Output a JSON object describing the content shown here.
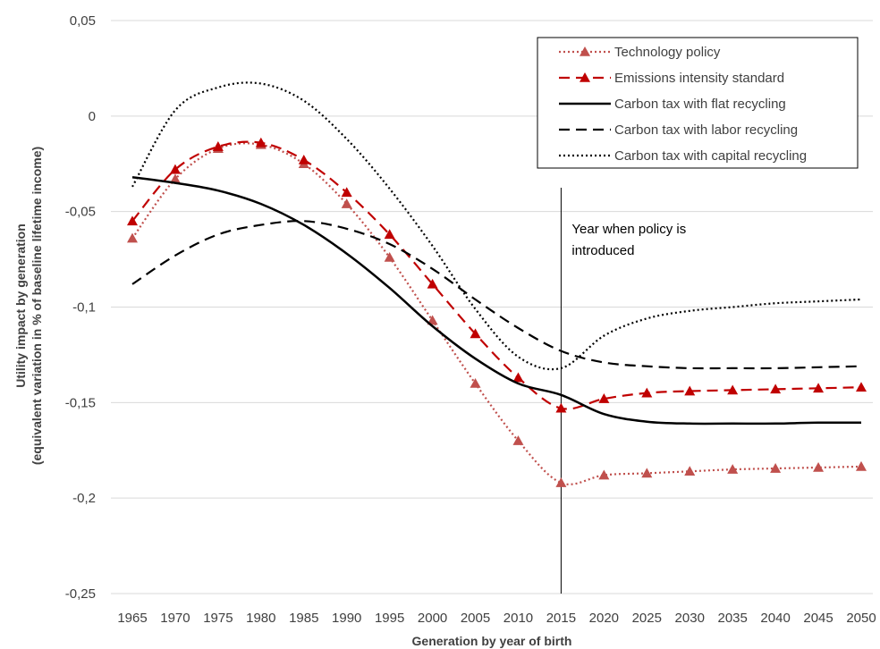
{
  "chart_data": {
    "type": "line",
    "title": "",
    "xlabel": "Generation by year of birth",
    "ylabel_line1": "Utility impact by generation",
    "ylabel_line2": "(equivalent variation in % of baseline lifetime income)",
    "x": [
      1965,
      1970,
      1975,
      1980,
      1985,
      1990,
      1995,
      2000,
      2005,
      2010,
      2015,
      2020,
      2025,
      2030,
      2035,
      2040,
      2045,
      2050
    ],
    "x_tick_labels": [
      "1965",
      "1970",
      "1975",
      "1980",
      "1985",
      "1990",
      "1995",
      "2000",
      "2005",
      "2010",
      "2015",
      "2020",
      "2025",
      "2030",
      "2035",
      "2040",
      "2045",
      "2050"
    ],
    "ylim": [
      -0.25,
      0.05
    ],
    "y_ticks": [
      0.05,
      0,
      -0.05,
      -0.1,
      -0.15,
      -0.2,
      -0.25
    ],
    "y_tick_labels": [
      "0,05",
      "0",
      "-0,05",
      "-0,1",
      "-0,15",
      "-0,2",
      "-0,25"
    ],
    "grid": "horizontal",
    "legend_position": "top-right",
    "annotation": {
      "x": 2015,
      "text_line1": "Year when policy is",
      "text_line2": "introduced"
    },
    "series": [
      {
        "name": "Technology policy",
        "color": "#c0504d",
        "line": "dotted",
        "marker": "triangle",
        "values": [
          -0.064,
          -0.033,
          -0.017,
          -0.015,
          -0.025,
          -0.046,
          -0.074,
          -0.107,
          -0.14,
          -0.17,
          -0.192,
          -0.188,
          -0.187,
          -0.186,
          -0.185,
          -0.1845,
          -0.184,
          -0.1835
        ]
      },
      {
        "name": "Emissions intensity standard",
        "color": "#c00000",
        "line": "dashed",
        "marker": "triangle",
        "values": [
          -0.055,
          -0.028,
          -0.016,
          -0.014,
          -0.023,
          -0.04,
          -0.062,
          -0.088,
          -0.114,
          -0.137,
          -0.153,
          -0.148,
          -0.145,
          -0.144,
          -0.1435,
          -0.143,
          -0.1425,
          -0.142
        ]
      },
      {
        "name": "Carbon tax with flat recycling",
        "color": "#000000",
        "line": "solid",
        "marker": "none",
        "values": [
          -0.032,
          -0.035,
          -0.039,
          -0.046,
          -0.057,
          -0.072,
          -0.09,
          -0.11,
          -0.127,
          -0.14,
          -0.146,
          -0.156,
          -0.16,
          -0.161,
          -0.161,
          -0.161,
          -0.1605,
          -0.1605
        ]
      },
      {
        "name": "Carbon tax with labor recycling",
        "color": "#000000",
        "line": "dashed",
        "marker": "none",
        "values": [
          -0.088,
          -0.073,
          -0.062,
          -0.057,
          -0.055,
          -0.059,
          -0.067,
          -0.08,
          -0.096,
          -0.111,
          -0.123,
          -0.129,
          -0.131,
          -0.132,
          -0.132,
          -0.132,
          -0.1315,
          -0.131
        ]
      },
      {
        "name": "Carbon tax with capital recycling",
        "color": "#000000",
        "line": "dotted",
        "marker": "none",
        "values": [
          -0.037,
          0.003,
          0.015,
          0.017,
          0.008,
          -0.012,
          -0.038,
          -0.068,
          -0.101,
          -0.126,
          -0.132,
          -0.115,
          -0.106,
          -0.102,
          -0.1,
          -0.098,
          -0.097,
          -0.096
        ]
      }
    ]
  }
}
